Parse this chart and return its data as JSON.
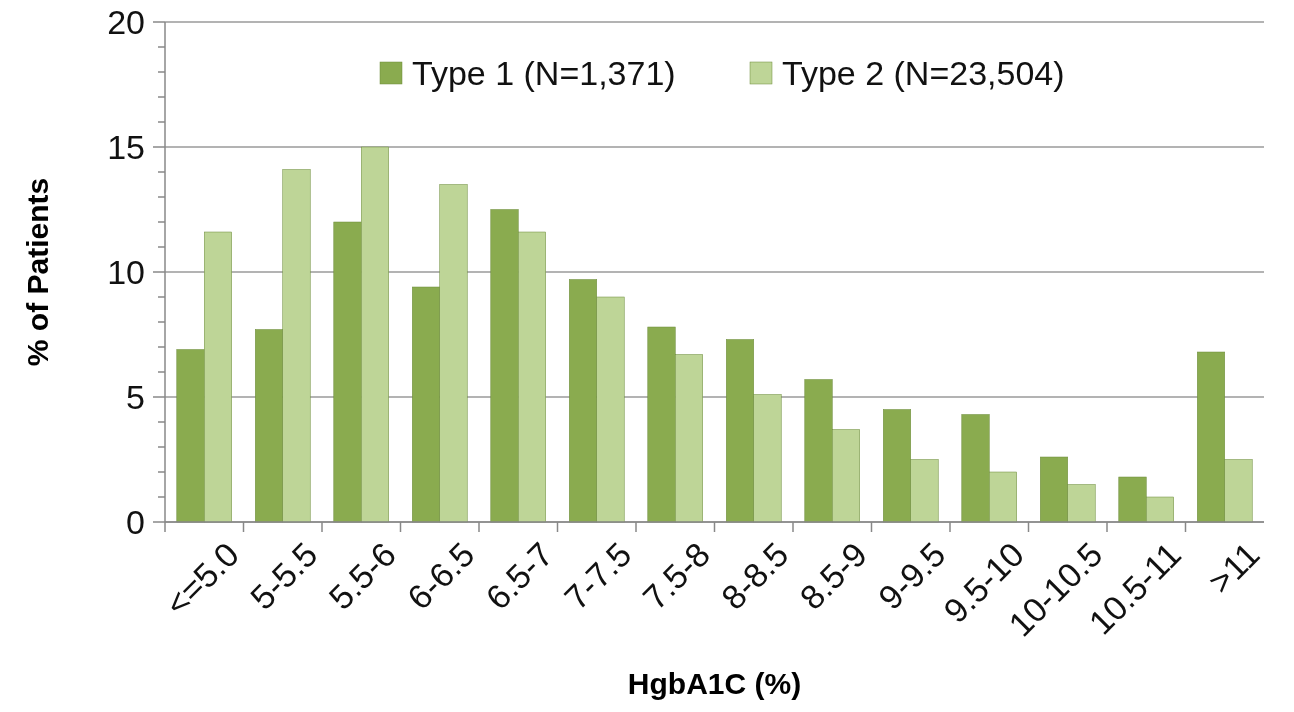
{
  "chart_data": {
    "type": "bar",
    "xlabel": "HgbA1C (%)",
    "ylabel": "% of Patients",
    "categories": [
      "<=5.0",
      "5-5.5",
      "5.5-6",
      "6-6.5",
      "6.5-7",
      "7-7.5",
      "7.5-8",
      "8-8.5",
      "8.5-9",
      "9-9.5",
      "9.5-10",
      "10-10.5",
      "10.5-11",
      ">11"
    ],
    "series": [
      {
        "name": "Type 1 (N=1,371)",
        "color": "#8aab4f",
        "values": [
          6.9,
          7.7,
          12.0,
          9.4,
          12.5,
          9.7,
          7.8,
          7.3,
          5.7,
          4.5,
          4.3,
          2.6,
          1.8,
          6.8
        ]
      },
      {
        "name": "Type 2 (N=23,504)",
        "color": "#bed597",
        "values": [
          11.6,
          14.1,
          15.0,
          13.5,
          11.6,
          9.0,
          6.7,
          5.1,
          3.7,
          2.5,
          2.0,
          1.5,
          1.0,
          2.5
        ]
      }
    ],
    "ylim": [
      0,
      20
    ],
    "yticks": [
      0,
      {
        "value": 1,
        "label": null
      },
      {
        "value": 2,
        "label": null
      },
      {
        "value": 3,
        "label": null
      },
      {
        "value": 4,
        "label": null
      },
      5,
      {
        "value": 6,
        "label": null
      },
      {
        "value": 7,
        "label": null
      },
      {
        "value": 8,
        "label": null
      },
      {
        "value": 9,
        "label": null
      },
      10,
      {
        "value": 11,
        "label": null
      },
      {
        "value": 12,
        "label": null
      },
      {
        "value": 13,
        "label": null
      },
      {
        "value": 14,
        "label": null
      },
      15,
      {
        "value": 16,
        "label": null
      },
      {
        "value": 17,
        "label": null
      },
      {
        "value": 18,
        "label": null
      },
      {
        "value": 19,
        "label": null
      },
      20
    ],
    "grid": "y",
    "legend": "top"
  }
}
